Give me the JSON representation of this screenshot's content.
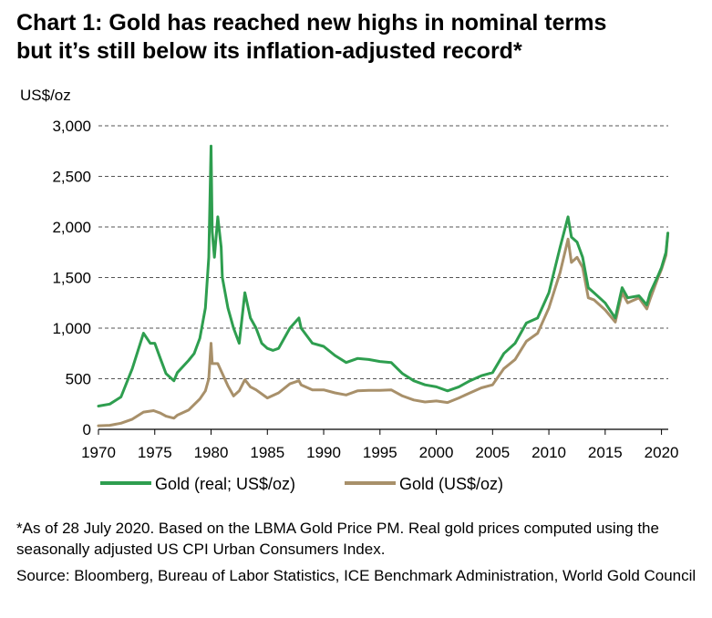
{
  "title_line1": "Chart 1: Gold has reached new highs in nominal terms",
  "title_line2": "but it’s still below its inflation-adjusted record*",
  "footnote": "*As of 28 July 2020. Based on the LBMA Gold Price PM. Real gold prices computed using the seasonally adjusted US CPI Urban Consumers Index.",
  "source": "Source: Bloomberg, Bureau of Labor Statistics, ICE Benchmark Administration, World Gold Council",
  "chart_data": {
    "type": "line",
    "title": "Chart 1: Gold has reached new highs in nominal terms but it’s still below its inflation-adjusted record*",
    "ylabel": "US$/oz",
    "xlabel": "",
    "xlim": [
      1970,
      2020.6
    ],
    "ylim": [
      0,
      3000
    ],
    "xticks": [
      1970,
      1975,
      1980,
      1985,
      1990,
      1995,
      2000,
      2005,
      2010,
      2015,
      2020
    ],
    "yticks": [
      0,
      500,
      1000,
      1500,
      2000,
      2500,
      3000
    ],
    "ytick_labels": [
      "0",
      "500",
      "1,000",
      "1,500",
      "2,000",
      "2,500",
      "3,000"
    ],
    "grid": "horizontal dashed",
    "legend_position": "bottom",
    "series": [
      {
        "name": "Gold (real; US$/oz)",
        "color": "#2e9e4f",
        "points": [
          [
            1970,
            230
          ],
          [
            1971,
            250
          ],
          [
            1972,
            320
          ],
          [
            1973,
            600
          ],
          [
            1974,
            950
          ],
          [
            1974.6,
            850
          ],
          [
            1975,
            850
          ],
          [
            1975.5,
            700
          ],
          [
            1976,
            550
          ],
          [
            1976.7,
            480
          ],
          [
            1977,
            560
          ],
          [
            1978,
            680
          ],
          [
            1978.5,
            750
          ],
          [
            1979,
            900
          ],
          [
            1979.5,
            1200
          ],
          [
            1979.8,
            1700
          ],
          [
            1980,
            2800
          ],
          [
            1980.1,
            1950
          ],
          [
            1980.3,
            1700
          ],
          [
            1980.6,
            2100
          ],
          [
            1980.9,
            1800
          ],
          [
            1981,
            1500
          ],
          [
            1981.5,
            1200
          ],
          [
            1982,
            1000
          ],
          [
            1982.5,
            850
          ],
          [
            1983,
            1350
          ],
          [
            1983.5,
            1100
          ],
          [
            1984,
            1000
          ],
          [
            1984.5,
            850
          ],
          [
            1985,
            800
          ],
          [
            1985.5,
            780
          ],
          [
            1986,
            800
          ],
          [
            1987,
            1000
          ],
          [
            1987.8,
            1100
          ],
          [
            1988,
            1000
          ],
          [
            1989,
            850
          ],
          [
            1990,
            820
          ],
          [
            1991,
            730
          ],
          [
            1992,
            660
          ],
          [
            1993,
            700
          ],
          [
            1994,
            690
          ],
          [
            1995,
            670
          ],
          [
            1996,
            660
          ],
          [
            1997,
            550
          ],
          [
            1998,
            480
          ],
          [
            1999,
            440
          ],
          [
            2000,
            420
          ],
          [
            2001,
            380
          ],
          [
            2002,
            420
          ],
          [
            2003,
            480
          ],
          [
            2004,
            530
          ],
          [
            2005,
            560
          ],
          [
            2006,
            750
          ],
          [
            2007,
            850
          ],
          [
            2008,
            1050
          ],
          [
            2009,
            1100
          ],
          [
            2010,
            1350
          ],
          [
            2011,
            1800
          ],
          [
            2011.7,
            2100
          ],
          [
            2012,
            1900
          ],
          [
            2012.5,
            1850
          ],
          [
            2013,
            1700
          ],
          [
            2013.5,
            1400
          ],
          [
            2014,
            1350
          ],
          [
            2015,
            1250
          ],
          [
            2015.9,
            1100
          ],
          [
            2016.5,
            1400
          ],
          [
            2017,
            1300
          ],
          [
            2018,
            1320
          ],
          [
            2018.7,
            1230
          ],
          [
            2019,
            1350
          ],
          [
            2019.7,
            1520
          ],
          [
            2020,
            1600
          ],
          [
            2020.4,
            1750
          ],
          [
            2020.57,
            1940
          ]
        ]
      },
      {
        "name": "Gold (US$/oz)",
        "color": "#a8906a",
        "points": [
          [
            1970,
            35
          ],
          [
            1971,
            40
          ],
          [
            1972,
            60
          ],
          [
            1973,
            100
          ],
          [
            1974,
            170
          ],
          [
            1974.9,
            185
          ],
          [
            1975.5,
            160
          ],
          [
            1976,
            130
          ],
          [
            1976.7,
            110
          ],
          [
            1977,
            140
          ],
          [
            1978,
            190
          ],
          [
            1979,
            300
          ],
          [
            1979.5,
            380
          ],
          [
            1979.8,
            500
          ],
          [
            1980,
            850
          ],
          [
            1980.1,
            650
          ],
          [
            1980.6,
            650
          ],
          [
            1981,
            550
          ],
          [
            1981.5,
            430
          ],
          [
            1982,
            330
          ],
          [
            1982.5,
            380
          ],
          [
            1983,
            490
          ],
          [
            1983.5,
            420
          ],
          [
            1984,
            390
          ],
          [
            1985,
            310
          ],
          [
            1986,
            360
          ],
          [
            1987,
            450
          ],
          [
            1987.8,
            480
          ],
          [
            1988,
            440
          ],
          [
            1989,
            390
          ],
          [
            1990,
            390
          ],
          [
            1991,
            360
          ],
          [
            1992,
            340
          ],
          [
            1993,
            380
          ],
          [
            1994,
            385
          ],
          [
            1995,
            385
          ],
          [
            1996,
            390
          ],
          [
            1997,
            330
          ],
          [
            1998,
            290
          ],
          [
            1999,
            270
          ],
          [
            2000,
            280
          ],
          [
            2001,
            265
          ],
          [
            2002,
            310
          ],
          [
            2003,
            360
          ],
          [
            2004,
            410
          ],
          [
            2005,
            440
          ],
          [
            2006,
            600
          ],
          [
            2007,
            690
          ],
          [
            2008,
            870
          ],
          [
            2009,
            950
          ],
          [
            2010,
            1200
          ],
          [
            2011,
            1550
          ],
          [
            2011.7,
            1880
          ],
          [
            2012,
            1650
          ],
          [
            2012.5,
            1700
          ],
          [
            2013,
            1600
          ],
          [
            2013.5,
            1300
          ],
          [
            2014,
            1280
          ],
          [
            2015,
            1180
          ],
          [
            2015.9,
            1060
          ],
          [
            2016.5,
            1350
          ],
          [
            2017,
            1250
          ],
          [
            2018,
            1300
          ],
          [
            2018.7,
            1190
          ],
          [
            2019,
            1290
          ],
          [
            2019.7,
            1500
          ],
          [
            2020,
            1580
          ],
          [
            2020.4,
            1720
          ],
          [
            2020.57,
            1940
          ]
        ]
      }
    ]
  }
}
